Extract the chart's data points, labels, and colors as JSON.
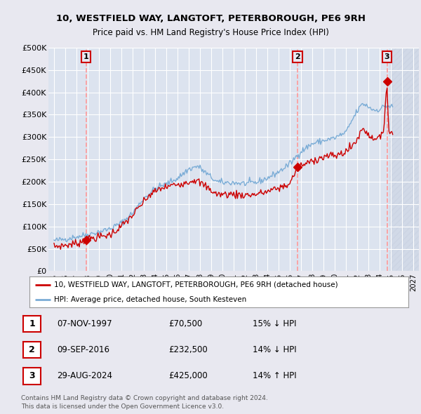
{
  "title1": "10, WESTFIELD WAY, LANGTOFT, PETERBOROUGH, PE6 9RH",
  "title2": "Price paid vs. HM Land Registry's House Price Index (HPI)",
  "legend_label_red": "10, WESTFIELD WAY, LANGTOFT, PETERBOROUGH, PE6 9RH (detached house)",
  "legend_label_blue": "HPI: Average price, detached house, South Kesteven",
  "footer1": "Contains HM Land Registry data © Crown copyright and database right 2024.",
  "footer2": "This data is licensed under the Open Government Licence v3.0.",
  "sales": [
    {
      "num": 1,
      "date": "07-NOV-1997",
      "price": "£70,500",
      "pct": "15% ↓ HPI",
      "year": 1997.85,
      "val": 70500
    },
    {
      "num": 2,
      "date": "09-SEP-2016",
      "price": "£232,500",
      "pct": "14% ↓ HPI",
      "year": 2016.69,
      "val": 232500
    },
    {
      "num": 3,
      "date": "29-AUG-2024",
      "price": "£425,000",
      "pct": "14% ↑ HPI",
      "year": 2024.66,
      "val": 425000
    }
  ],
  "ylim": [
    0,
    500000
  ],
  "yticks": [
    0,
    50000,
    100000,
    150000,
    200000,
    250000,
    300000,
    350000,
    400000,
    450000,
    500000
  ],
  "ytick_labels": [
    "£0",
    "£50K",
    "£100K",
    "£150K",
    "£200K",
    "£250K",
    "£300K",
    "£350K",
    "£400K",
    "£450K",
    "£500K"
  ],
  "xlim": [
    1994.5,
    2027.5
  ],
  "red_color": "#cc0000",
  "blue_color": "#7aacd6",
  "bg_color": "#e8e8f0",
  "plot_bg": "#dce3ef",
  "grid_color": "#ffffff",
  "dashed_color": "#ff9999",
  "hatched_color": "#c8d0e0"
}
